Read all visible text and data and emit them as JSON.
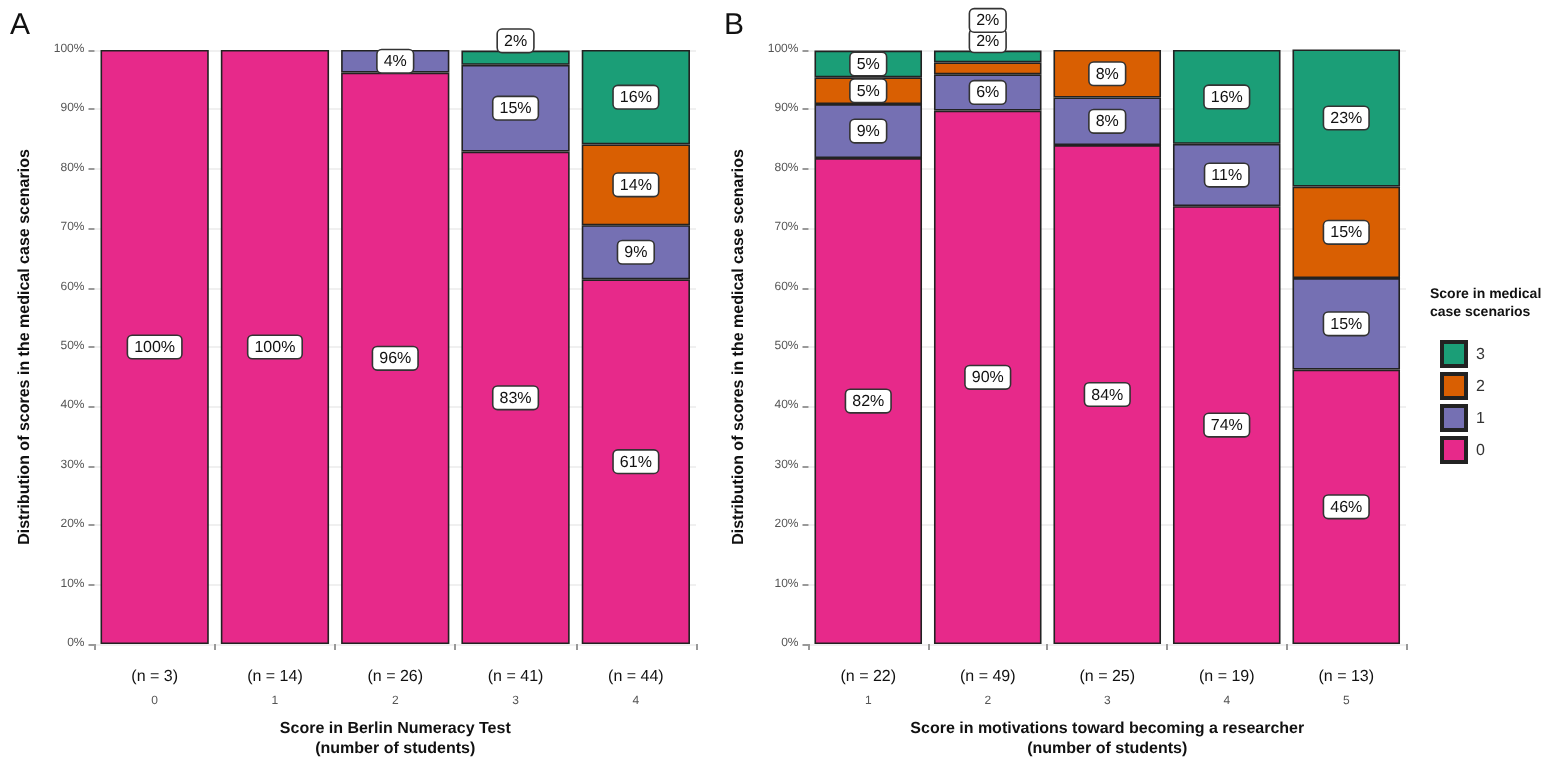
{
  "chart_data": [
    {
      "type": "bar",
      "title": "A",
      "xlabel": "Score in Berlin Numeracy Test\n(number of students)",
      "ylabel": "Distribution of scores in the medical case scenarios",
      "categories": [
        "0",
        "1",
        "2",
        "3",
        "4"
      ],
      "stacked": true,
      "legend": false,
      "grid": "y",
      "ylim": [
        0,
        100
      ],
      "yticks": [
        {
          "value": 0,
          "label": "0%"
        },
        {
          "value": 10,
          "label": "10%"
        },
        {
          "value": 20,
          "label": "20%"
        },
        {
          "value": 30,
          "label": "30%"
        },
        {
          "value": 40,
          "label": "40%"
        },
        {
          "value": 50,
          "label": "50%"
        },
        {
          "value": 60,
          "label": "60%"
        },
        {
          "value": 70,
          "label": "70%"
        },
        {
          "value": 80,
          "label": "80%"
        },
        {
          "value": 90,
          "label": "90%"
        },
        {
          "value": 100,
          "label": "100%"
        }
      ],
      "series": [
        {
          "color": "#e7298a",
          "values": [
            100,
            100,
            96.2,
            82.9,
            61.4
          ],
          "value_labels": [
            "100%",
            "100%",
            "96%",
            "83%",
            "61%"
          ]
        },
        {
          "color": "#7570b3",
          "values": [
            null,
            null,
            3.8,
            14.6,
            9.1
          ],
          "value_labels": [
            null,
            null,
            "4%",
            "15%",
            "9%"
          ]
        },
        {
          "color": "#d95f02",
          "values": [
            null,
            null,
            null,
            null,
            13.6
          ],
          "value_labels": [
            null,
            null,
            null,
            null,
            "14%"
          ]
        },
        {
          "color": "#1b9e77",
          "values": [
            null,
            null,
            null,
            2.4,
            15.9
          ],
          "value_labels": [
            null,
            null,
            null,
            "2%",
            "16%"
          ]
        }
      ],
      "annotations": [
        "(n = 3)",
        "(n = 14)",
        "(n = 26)",
        "(n = 41)",
        "(n = 44)"
      ]
    },
    {
      "type": "bar",
      "title": "B",
      "xlabel": "Score in motivations toward becoming a researcher\n(number of students)",
      "ylabel": "Distribution of scores in the medical case scenarios",
      "legend_title": "Score in medical\ncase scenarios",
      "categories": [
        "1",
        "2",
        "3",
        "4",
        "5"
      ],
      "stacked": true,
      "legend": "right",
      "grid": "y",
      "ylim": [
        0,
        100
      ],
      "yticks": [
        {
          "value": 0,
          "label": "0%"
        },
        {
          "value": 10,
          "label": "10%"
        },
        {
          "value": 20,
          "label": "20%"
        },
        {
          "value": 30,
          "label": "30%"
        },
        {
          "value": 40,
          "label": "40%"
        },
        {
          "value": 50,
          "label": "50%"
        },
        {
          "value": 60,
          "label": "60%"
        },
        {
          "value": 70,
          "label": "70%"
        },
        {
          "value": 80,
          "label": "80%"
        },
        {
          "value": 90,
          "label": "90%"
        },
        {
          "value": 100,
          "label": "100%"
        }
      ],
      "series": [
        {
          "name": "0",
          "color": "#e7298a",
          "values": [
            81.8,
            89.8,
            84,
            73.7,
            46.2
          ],
          "value_labels": [
            "82%",
            "90%",
            "84%",
            "74%",
            "46%"
          ]
        },
        {
          "name": "1",
          "color": "#7570b3",
          "values": [
            9.1,
            6.1,
            8,
            10.5,
            15.4
          ],
          "value_labels": [
            "9%",
            "6%",
            "8%",
            "11%",
            "15%"
          ]
        },
        {
          "name": "2",
          "color": "#d95f02",
          "values": [
            4.5,
            2,
            8,
            null,
            15.4
          ],
          "value_labels": [
            "5%",
            "2%",
            "8%",
            null,
            "15%"
          ]
        },
        {
          "name": "3",
          "color": "#1b9e77",
          "values": [
            4.5,
            2,
            null,
            15.8,
            23.1
          ],
          "value_labels": [
            "5%",
            "2%",
            null,
            "16%",
            "23%"
          ]
        }
      ],
      "annotations": [
        "(n = 22)",
        "(n = 49)",
        "(n = 25)",
        "(n = 19)",
        "(n = 13)"
      ]
    }
  ]
}
